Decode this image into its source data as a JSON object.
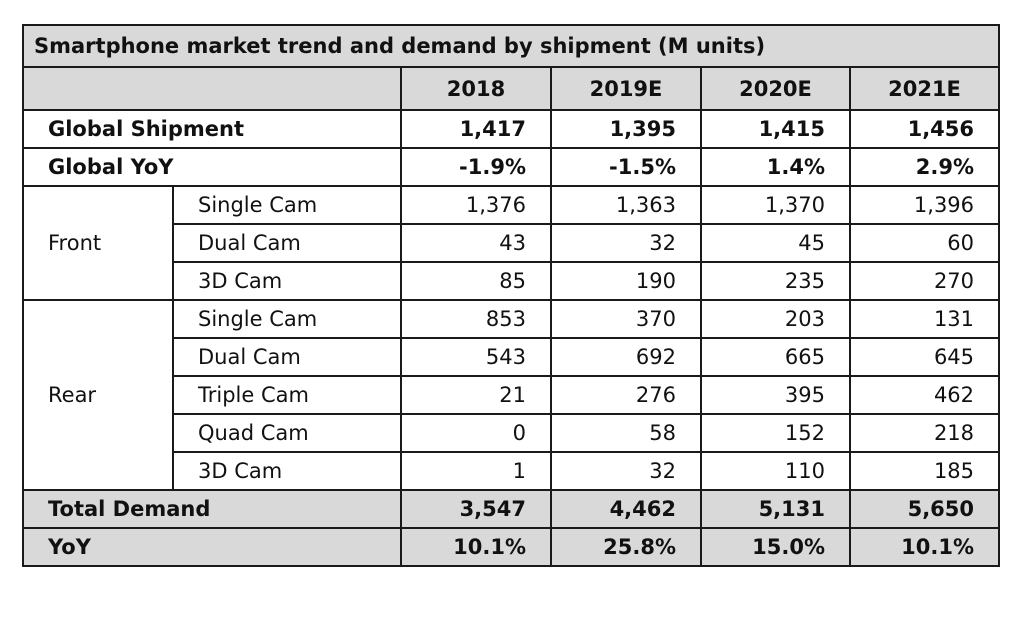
{
  "chart_data": {
    "type": "table",
    "title": "Smartphone market trend and demand by shipment (M units)",
    "columns": [
      "2018",
      "2019E",
      "2020E",
      "2021E"
    ],
    "rows": [
      {
        "group": "",
        "label": "Global Shipment",
        "values": [
          "1,417",
          "1,395",
          "1,415",
          "1,456"
        ]
      },
      {
        "group": "",
        "label": "Global YoY",
        "values": [
          "-1.9%",
          "-1.5%",
          "1.4%",
          "2.9%"
        ]
      },
      {
        "group": "Front",
        "label": "Single Cam",
        "values": [
          "1,376",
          "1,363",
          "1,370",
          "1,396"
        ]
      },
      {
        "group": "Front",
        "label": "Dual Cam",
        "values": [
          "43",
          "32",
          "45",
          "60"
        ]
      },
      {
        "group": "Front",
        "label": "3D Cam",
        "values": [
          "85",
          "190",
          "235",
          "270"
        ]
      },
      {
        "group": "Rear",
        "label": "Single Cam",
        "values": [
          "853",
          "370",
          "203",
          "131"
        ]
      },
      {
        "group": "Rear",
        "label": "Dual Cam",
        "values": [
          "543",
          "692",
          "665",
          "645"
        ]
      },
      {
        "group": "Rear",
        "label": "Triple Cam",
        "values": [
          "21",
          "276",
          "395",
          "462"
        ]
      },
      {
        "group": "Rear",
        "label": "Quad Cam",
        "values": [
          "0",
          "58",
          "152",
          "218"
        ]
      },
      {
        "group": "Rear",
        "label": "3D Cam",
        "values": [
          "1",
          "32",
          "110",
          "185"
        ]
      },
      {
        "group": "",
        "label": "Total Demand",
        "values": [
          "3,547",
          "4,462",
          "5,131",
          "5,650"
        ]
      },
      {
        "group": "",
        "label": "YoY",
        "values": [
          "10.1%",
          "25.8%",
          "15.0%",
          "10.1%"
        ]
      }
    ],
    "header_color": "#d9d9d9"
  }
}
